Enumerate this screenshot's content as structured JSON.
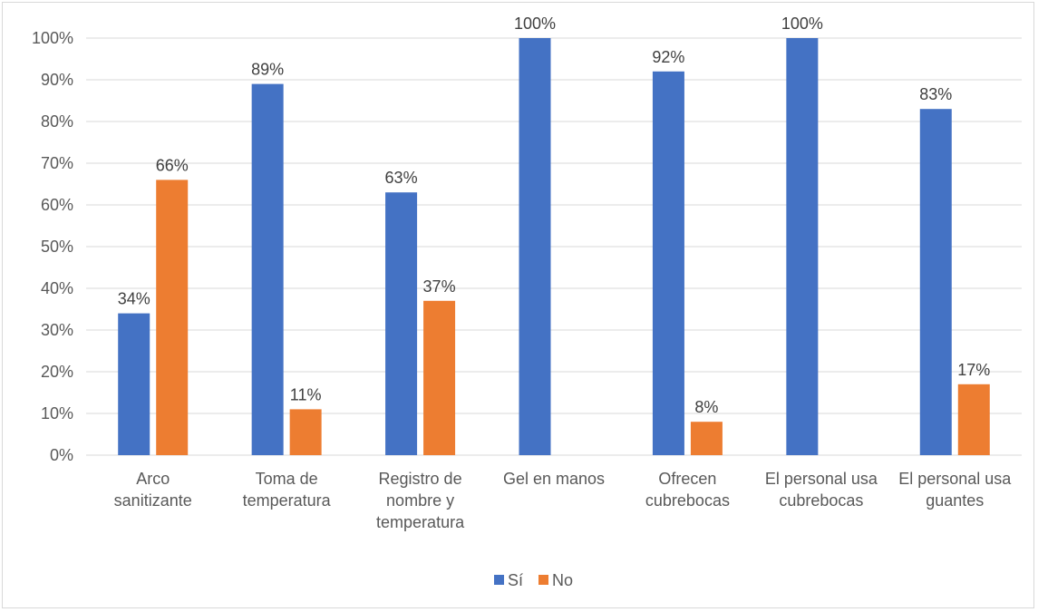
{
  "chart_data": {
    "type": "bar",
    "categories": [
      [
        "Arco",
        "sanitizante"
      ],
      [
        "Toma de",
        "temperatura"
      ],
      [
        "Registro de",
        "nombre y",
        "temperatura"
      ],
      [
        "Gel en manos"
      ],
      [
        "Ofrecen",
        "cubrebocas"
      ],
      [
        "El personal usa",
        "cubrebocas"
      ],
      [
        "El personal usa",
        "guantes"
      ]
    ],
    "series": [
      {
        "name": "Sí",
        "color": "#4472C4",
        "values": [
          34,
          89,
          63,
          100,
          92,
          100,
          83
        ]
      },
      {
        "name": "No",
        "color": "#ED7D31",
        "values": [
          66,
          11,
          37,
          null,
          8,
          null,
          17
        ]
      }
    ],
    "ylim": [
      0,
      100
    ],
    "yticks": [
      "0%",
      "10%",
      "20%",
      "30%",
      "40%",
      "50%",
      "60%",
      "70%",
      "80%",
      "90%",
      "100%"
    ],
    "value_suffix": "%",
    "grid": true,
    "legend_position": "bottom"
  }
}
